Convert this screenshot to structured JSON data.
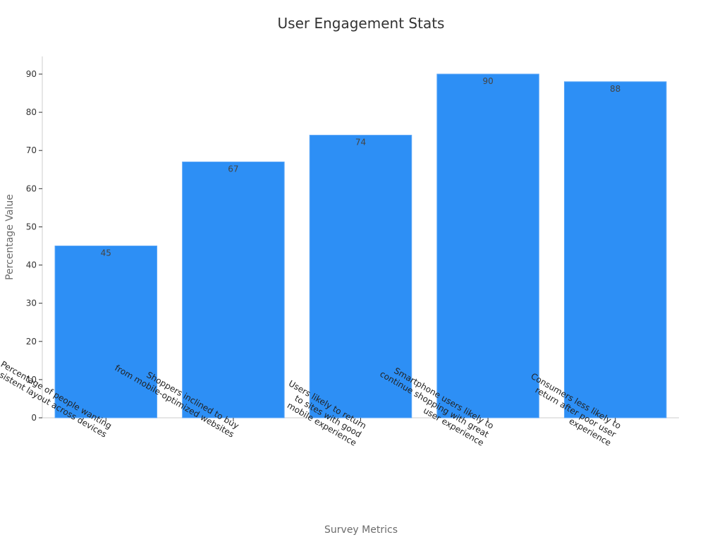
{
  "chart_data": {
    "type": "bar",
    "title": "User Engagement Stats",
    "xlabel": "Survey Metrics",
    "ylabel": "Percentage Value",
    "ylim": [
      0,
      90
    ],
    "yticks": [
      0,
      10,
      20,
      30,
      40,
      50,
      60,
      70,
      80,
      90
    ],
    "categories": [
      [
        "Percentage of people wanting",
        "consistent layout across devices"
      ],
      [
        "Shoppers inclined to buy",
        "from mobile-optimized websites"
      ],
      [
        "Users likely to return",
        "to sites with good",
        "mobile experience"
      ],
      [
        "Smartphone users likely to",
        "continue shopping with great",
        "user experience"
      ],
      [
        "Consumers less likely to",
        "return after poor user",
        "experience"
      ]
    ],
    "values": [
      45,
      67,
      74,
      90,
      88
    ],
    "bar_color": "#2d8ff5",
    "grid": false,
    "legend": "none"
  }
}
